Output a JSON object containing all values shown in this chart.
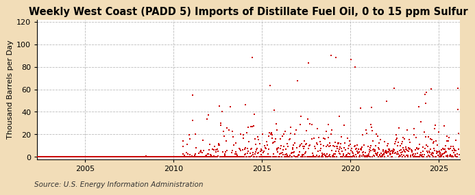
{
  "title": "Weekly West Coast (PADD 5) Imports of Distillate Fuel Oil, 0 to 15 ppm Sulfur",
  "ylabel": "Thousand Barrels per Day",
  "source": "Source: U.S. Energy Information Administration",
  "xlim": [
    2002.3,
    2026.2
  ],
  "ylim": [
    -2,
    122
  ],
  "yticks": [
    0,
    20,
    40,
    60,
    80,
    100,
    120
  ],
  "xticks": [
    2005,
    2010,
    2015,
    2020,
    2025
  ],
  "dot_color": "#cc0000",
  "plot_bg_color": "#ffffff",
  "outer_bg_color": "#f5e6cc",
  "grid_color": "#aaaaaa",
  "title_fontsize": 10.5,
  "label_fontsize": 8,
  "tick_fontsize": 8,
  "source_fontsize": 7.5
}
